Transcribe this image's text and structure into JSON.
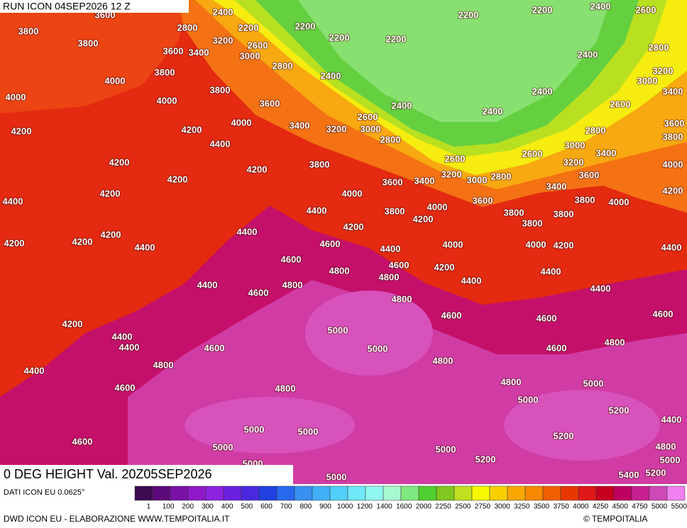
{
  "header": {
    "run": "RUN ICON 04SEP2026 12 Z",
    "field": "0 DEG HEIGHT Val. 20Z05SEP2026",
    "source": "DATI ICON EU 0.0625°",
    "credit": "DWD ICON EU - ELABORAZIONE WWW.TEMPOITALIA.IT",
    "copyright": "© TEMPOITALIA"
  },
  "map": {
    "labels": [
      3600,
      2400,
      2200,
      2200,
      2400,
      2600,
      3800,
      2800,
      2200,
      2200,
      3800,
      3200,
      2600,
      2200,
      2200,
      2400,
      2800,
      3600,
      3400,
      3000,
      3800,
      2800,
      2400,
      3200,
      4000,
      3000,
      3400,
      4000,
      4000,
      3800,
      3600,
      2400,
      2400,
      2400,
      2600,
      4200,
      4200,
      4000,
      3400,
      3200,
      2600,
      3000,
      2800,
      3600,
      3800,
      2800,
      4400,
      2600,
      3000,
      4200,
      4200,
      3800,
      2600,
      3200,
      3400,
      4000,
      3200,
      3000,
      2800,
      3600,
      4200,
      3600,
      3400,
      3400,
      4200,
      4200,
      4000,
      3600,
      3800,
      4000,
      4400,
      4400,
      3800,
      4000,
      3800,
      3800,
      4200,
      3800,
      4200,
      4400,
      4200,
      4200,
      4200,
      4400,
      4600,
      4400,
      4000,
      4000,
      4200,
      4400,
      4600,
      4600,
      4200,
      4800,
      4800,
      4400,
      4400,
      4400,
      4800,
      4600,
      4400,
      4800,
      4600,
      4600,
      4600,
      4200,
      5000,
      4400,
      4400,
      4800,
      4600,
      5000,
      4600,
      4800,
      4800,
      4400,
      4800,
      5000,
      4600,
      4800,
      5000,
      5200,
      4400,
      5000,
      5000,
      5200,
      4600,
      5000,
      5000,
      4800,
      5000,
      5200,
      5000,
      5400,
      5200,
      5000
    ]
  },
  "legend": {
    "labels": [
      "1",
      "100",
      "200",
      "300",
      "400",
      "500",
      "600",
      "700",
      "800",
      "900",
      "1000",
      "1200",
      "1400",
      "1600",
      "2000",
      "2250",
      "2500",
      "2750",
      "3000",
      "3250",
      "3500",
      "3750",
      "4000",
      "4250",
      "4500",
      "4750",
      "5000",
      "5500"
    ],
    "colors": [
      "#3d0a4f",
      "#5c0a7a",
      "#7a10a8",
      "#9018c8",
      "#8a22e0",
      "#6a22e0",
      "#4a28e0",
      "#2040e0",
      "#2868f0",
      "#3890f0",
      "#40b0f8",
      "#50d0f8",
      "#70e8f8",
      "#90f8f0",
      "#a8f8d0",
      "#80e880",
      "#50d030",
      "#80c820",
      "#c0e020",
      "#f8f800",
      "#f8d000",
      "#f8a800",
      "#f88800",
      "#f06000",
      "#e83800",
      "#e01818",
      "#c80020",
      "#c00060",
      "#c82090",
      "#d048b8",
      "#f080f0"
    ]
  }
}
